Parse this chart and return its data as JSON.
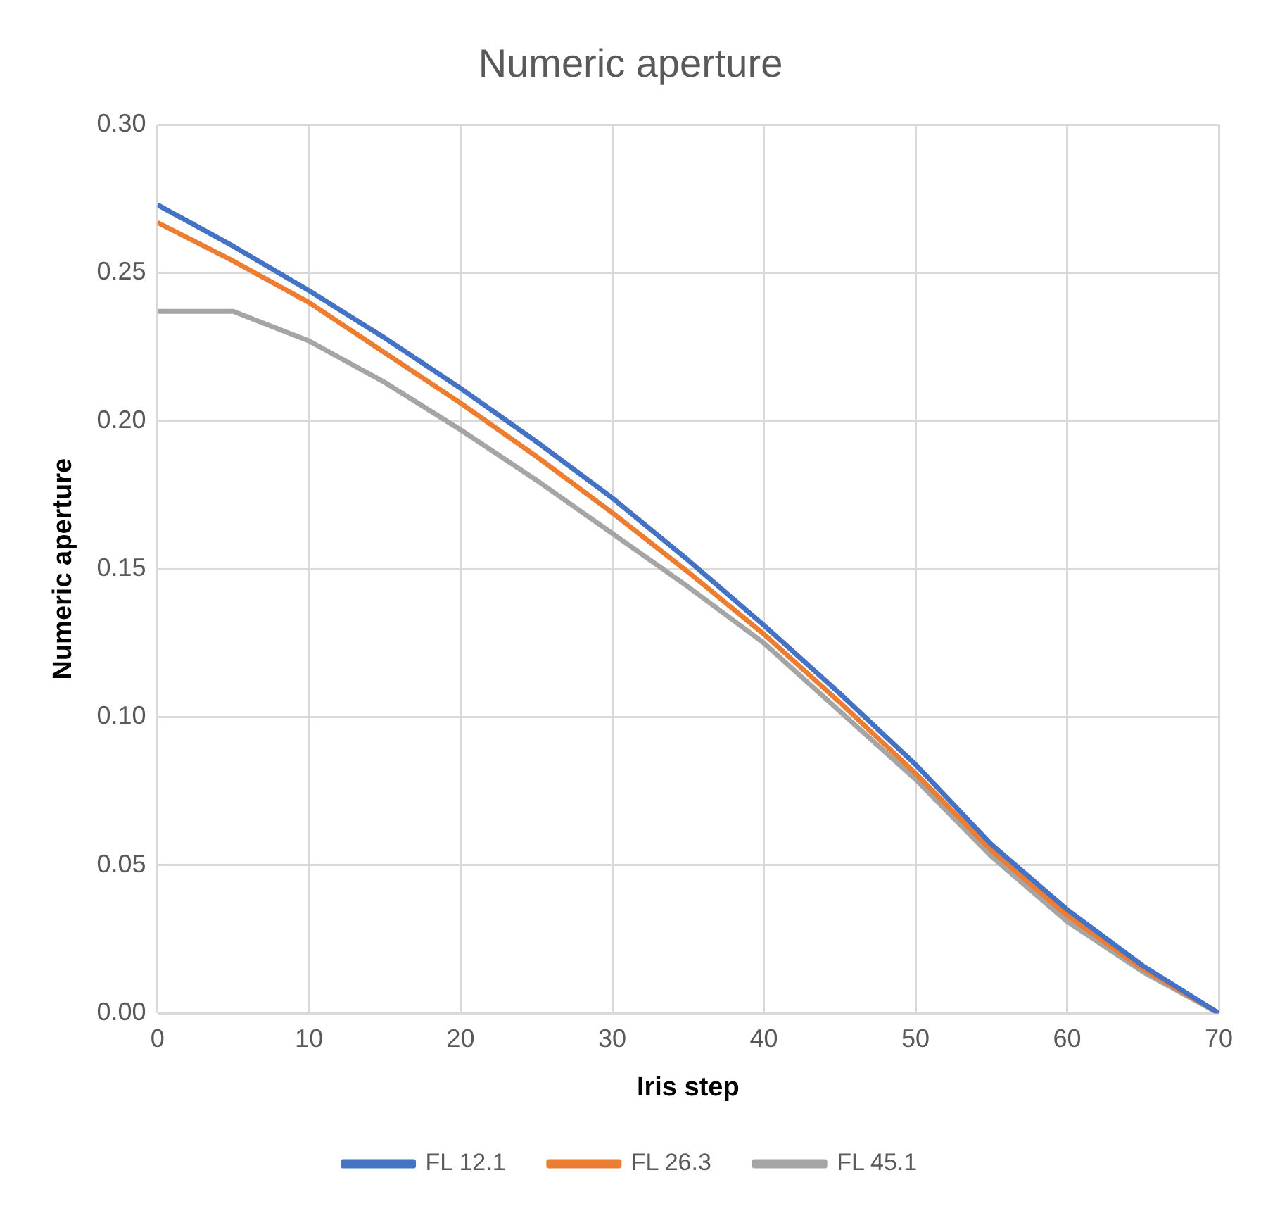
{
  "chart_data": {
    "type": "line",
    "title": "Numeric aperture",
    "xlabel": "Iris step",
    "ylabel": "Numeric aperture",
    "x": [
      0,
      5,
      10,
      15,
      20,
      25,
      30,
      35,
      40,
      45,
      50,
      55,
      60,
      65,
      70
    ],
    "series": [
      {
        "name": "FL 12.1",
        "color": "#4472c4",
        "values": [
          0.273,
          0.259,
          0.244,
          0.228,
          0.211,
          0.193,
          0.174,
          0.153,
          0.131,
          0.108,
          0.084,
          0.057,
          0.035,
          0.016,
          0
        ]
      },
      {
        "name": "FL 26.3",
        "color": "#ed7d31",
        "values": [
          0.267,
          0.254,
          0.24,
          0.223,
          0.206,
          0.188,
          0.169,
          0.149,
          0.128,
          0.105,
          0.081,
          0.055,
          0.033,
          0.015,
          0
        ]
      },
      {
        "name": "FL 45.1",
        "color": "#a5a5a5",
        "values": [
          0.237,
          0.237,
          0.227,
          0.213,
          0.197,
          0.18,
          0.162,
          0.144,
          0.125,
          0.102,
          0.079,
          0.053,
          0.031,
          0.014,
          0
        ]
      }
    ],
    "xlim": [
      0,
      70
    ],
    "xticks": [
      0,
      10,
      20,
      30,
      40,
      50,
      60,
      70
    ],
    "ylim": [
      0,
      0.3
    ],
    "yticks": [
      {
        "value": 0,
        "label": "0.00"
      },
      {
        "value": 0.05,
        "label": "0.05"
      },
      {
        "value": 0.1,
        "label": "0.10"
      },
      {
        "value": 0.15,
        "label": "0.15"
      },
      {
        "value": 0.2,
        "label": "0.20"
      },
      {
        "value": 0.25,
        "label": "0.25"
      },
      {
        "value": 0.3,
        "label": "0.30"
      }
    ],
    "grid": true,
    "legend": "bottom",
    "marker": "none",
    "line_style": "solid"
  }
}
